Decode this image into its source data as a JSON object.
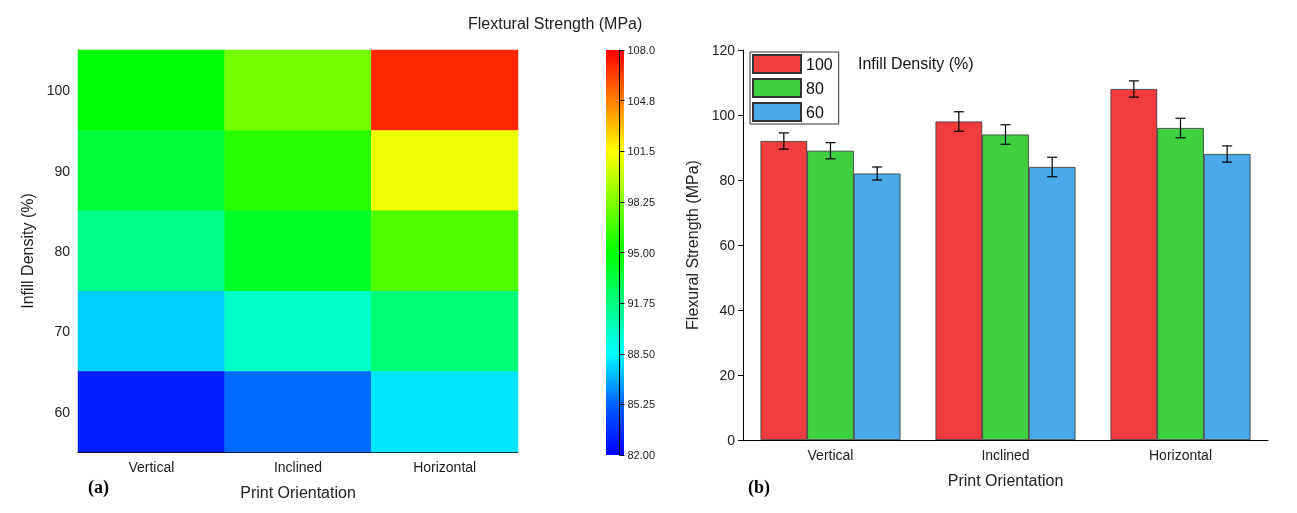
{
  "chart_data": [
    {
      "type": "heatmap",
      "clabel": "Flextural Strength (MPa)",
      "xlabel": "Print Orientation",
      "ylabel": "Infill Density (%)",
      "categories": [
        "Vertical",
        "Inclined",
        "Horizontal"
      ],
      "y_categories": [
        "100",
        "90",
        "80",
        "70",
        "60"
      ],
      "cells": [
        [
          95,
          98,
          107
        ],
        [
          93.5,
          96,
          101
        ],
        [
          91.5,
          94,
          97
        ],
        [
          87.5,
          90,
          92
        ],
        [
          83,
          85.5,
          88
        ]
      ],
      "clim": [
        82,
        108
      ],
      "cticks": [
        {
          "value": 82,
          "label": "82.00"
        },
        {
          "value": 85.25,
          "label": "85.25"
        },
        {
          "value": 88.5,
          "label": "88.50"
        },
        {
          "value": 91.75,
          "label": "91.75"
        },
        {
          "value": 95,
          "label": "95.00"
        },
        {
          "value": 98.25,
          "label": "98.25"
        },
        {
          "value": 101.5,
          "label": "101.5"
        },
        {
          "value": 104.75,
          "label": "104.8"
        },
        {
          "value": 108,
          "label": "108.0"
        }
      ],
      "annotations": [
        "(a)"
      ]
    },
    {
      "type": "bar",
      "xlabel": "Print Orientation",
      "ylabel": "Flexural Strength (MPa)",
      "categories": [
        "Vertical",
        "Inclined",
        "Horizontal"
      ],
      "series": [
        {
          "name": "100",
          "color": "#f03c3c",
          "values": [
            92,
            98,
            108
          ],
          "errors": [
            2.5,
            3,
            2.5
          ]
        },
        {
          "name": "80",
          "color": "#3fcf3f",
          "values": [
            89,
            94,
            96
          ],
          "errors": [
            2.5,
            3,
            3
          ]
        },
        {
          "name": "60",
          "color": "#4aa8e8",
          "values": [
            82,
            84,
            88
          ],
          "errors": [
            2,
            3,
            2.5
          ]
        }
      ],
      "ylim": [
        0,
        120
      ],
      "yticks": [
        0,
        20,
        40,
        60,
        80,
        100,
        120
      ],
      "legend": "top left",
      "legend_title": "Infill Density (%)",
      "annotations": [
        "(b)"
      ]
    }
  ]
}
